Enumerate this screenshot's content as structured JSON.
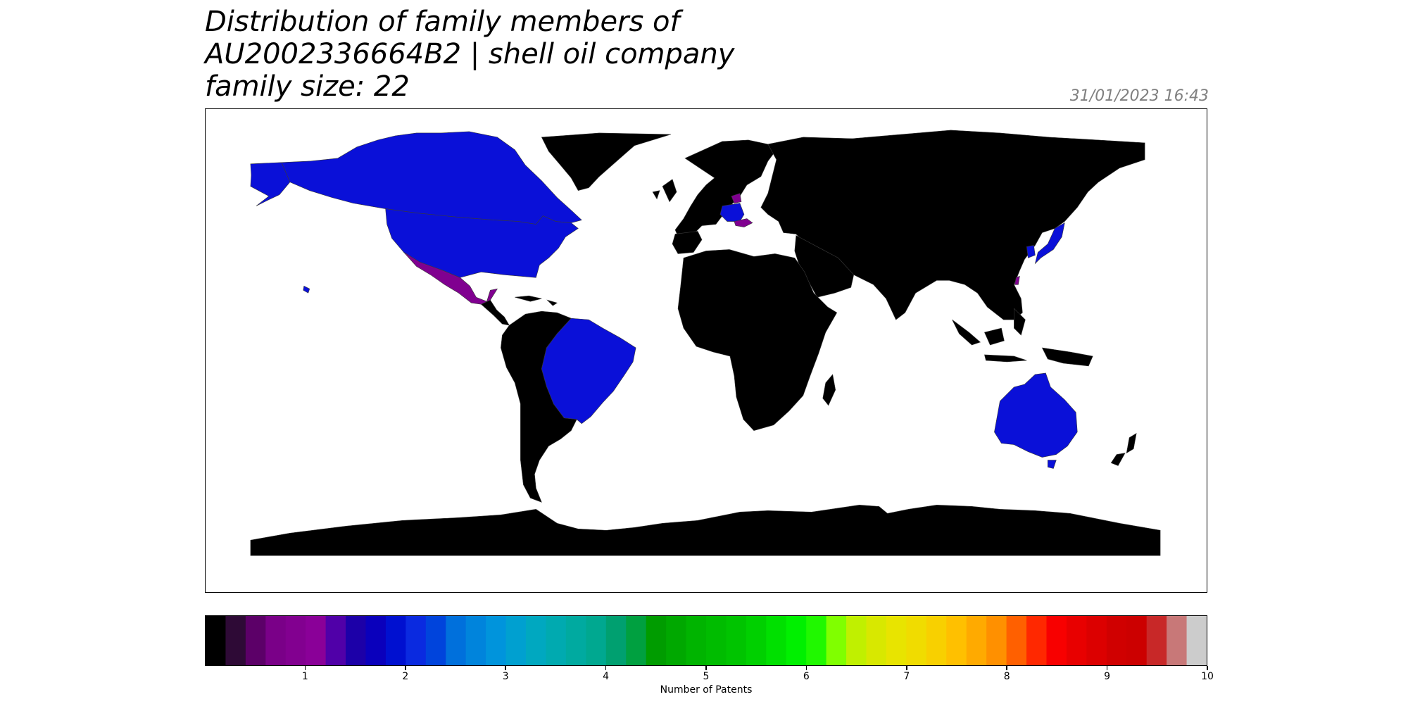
{
  "title_lines": [
    "Distribution of family members of",
    "AU2002336664B2 | shell oil company",
    "family size: 22"
  ],
  "timestamp": "31/01/2023 16:43",
  "colors": {
    "no_data": "#000000",
    "count_1": "#800090",
    "count_2": "#0a10d8",
    "background": "#ffffff"
  },
  "regions": [
    {
      "name": "United States",
      "count": 2
    },
    {
      "name": "Canada",
      "count": 2
    },
    {
      "name": "Brazil",
      "count": 2
    },
    {
      "name": "Australia",
      "count": 2
    },
    {
      "name": "Japan",
      "count": 2
    },
    {
      "name": "South Korea",
      "count": 2
    },
    {
      "name": "Germany",
      "count": 2
    },
    {
      "name": "Mexico",
      "count": 1
    },
    {
      "name": "Denmark",
      "count": 1
    },
    {
      "name": "Austria",
      "count": 1
    },
    {
      "name": "Taiwan",
      "count": 1
    }
  ],
  "colorbar": {
    "label": "Number of Patents",
    "ticks": [
      "1",
      "2",
      "3",
      "4",
      "5",
      "6",
      "7",
      "8",
      "9",
      "10"
    ],
    "min": 0,
    "max": 10,
    "swatches": [
      "#000000",
      "#2e0a36",
      "#5c0068",
      "#7a0088",
      "#820090",
      "#8a0098",
      "#5000a8",
      "#1c00a8",
      "#0a00bc",
      "#0010d0",
      "#0a2ae0",
      "#0044dc",
      "#0070dc",
      "#0084dc",
      "#0094dc",
      "#00a0d0",
      "#00a8c0",
      "#00aab0",
      "#00aaa0",
      "#00a890",
      "#00a070",
      "#00a040",
      "#009c00",
      "#00a800",
      "#00b400",
      "#00bc00",
      "#00c400",
      "#00d000",
      "#00e000",
      "#00f000",
      "#20f800",
      "#80ff00",
      "#c0f000",
      "#d8e800",
      "#e8e400",
      "#f0dc00",
      "#f8d000",
      "#ffc000",
      "#ffaa00",
      "#ff9000",
      "#ff6000",
      "#ff2800",
      "#f80000",
      "#e80000",
      "#dc0000",
      "#d00000",
      "#cc0000",
      "#c82828",
      "#c87878",
      "#cccccc"
    ]
  }
}
